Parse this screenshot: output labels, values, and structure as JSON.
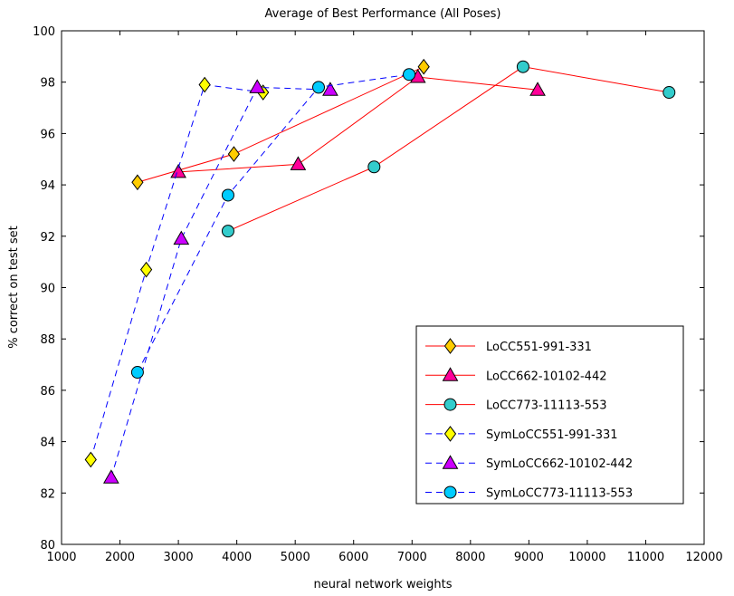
{
  "chart_data": {
    "type": "line",
    "title": "Average of Best Performance (All Poses)",
    "xlabel": "neural network weights",
    "ylabel": "% correct on test set",
    "xlim": [
      1000,
      12000
    ],
    "ylim": [
      80,
      100
    ],
    "xticks": [
      1000,
      2000,
      3000,
      4000,
      5000,
      6000,
      7000,
      8000,
      9000,
      10000,
      11000,
      12000
    ],
    "yticks": [
      80,
      82,
      84,
      86,
      88,
      90,
      92,
      94,
      96,
      98,
      100
    ],
    "grid": false,
    "legend_position": "bottom-right",
    "series": [
      {
        "name": "LoCC551-991-331",
        "line_color": "#ff0000",
        "line_style": "solid",
        "marker": "diamond",
        "marker_color": "#ffcc00",
        "x": [
          2300,
          3950,
          7200
        ],
        "y": [
          94.1,
          95.2,
          98.6
        ]
      },
      {
        "name": "LoCC662-10102-442",
        "line_color": "#ff0000",
        "line_style": "solid",
        "marker": "triangle",
        "marker_color": "#ff0099",
        "x": [
          3000,
          5050,
          7100,
          9150
        ],
        "y": [
          94.5,
          94.8,
          98.2,
          97.7
        ]
      },
      {
        "name": "LoCC773-11113-553",
        "line_color": "#ff0000",
        "line_style": "solid",
        "marker": "circle",
        "marker_color": "#33cccc",
        "x": [
          3850,
          6350,
          8900,
          11400
        ],
        "y": [
          92.2,
          94.7,
          98.6,
          97.6
        ]
      },
      {
        "name": "SymLoCC551-991-331",
        "line_color": "#0000ff",
        "line_style": "dashed",
        "marker": "diamond",
        "marker_color": "#ffff00",
        "x": [
          1500,
          2450,
          3450,
          4450
        ],
        "y": [
          83.3,
          90.7,
          97.9,
          97.6
        ]
      },
      {
        "name": "SymLoCC662-10102-442",
        "line_color": "#0000ff",
        "line_style": "dashed",
        "marker": "triangle",
        "marker_color": "#cc00ff",
        "x": [
          1850,
          3050,
          4350,
          5600
        ],
        "y": [
          82.6,
          91.9,
          97.8,
          97.7
        ]
      },
      {
        "name": "SymLoCC773-11113-553",
        "line_color": "#0000ff",
        "line_style": "dashed",
        "marker": "circle",
        "marker_color": "#00ccff",
        "x": [
          2300,
          3850,
          5400,
          6950
        ],
        "y": [
          86.7,
          93.6,
          97.8,
          98.3
        ]
      }
    ]
  }
}
